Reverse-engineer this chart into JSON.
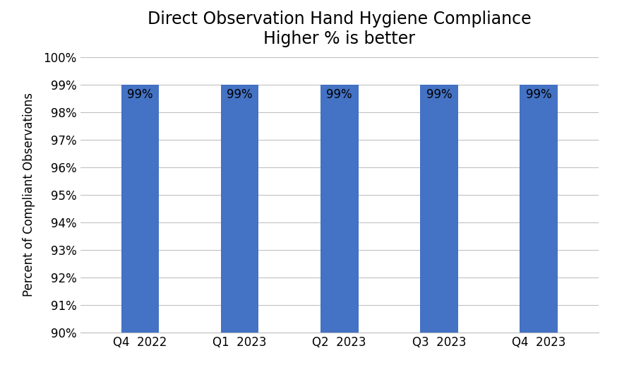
{
  "title_line1": "Direct Observation Hand Hygiene Compliance",
  "title_line2": "Higher % is better",
  "categories": [
    "Q4  2022",
    "Q1  2023",
    "Q2  2023",
    "Q3  2023",
    "Q4  2023"
  ],
  "values": [
    99,
    99,
    99,
    99,
    99
  ],
  "bar_color": "#4472C4",
  "ylabel": "Percent of Compliant Observations",
  "ylim_min": 90,
  "ylim_max": 100,
  "yticks": [
    90,
    91,
    92,
    93,
    94,
    95,
    96,
    97,
    98,
    99,
    100
  ],
  "bar_label_color": "black",
  "bar_label_fontsize": 12,
  "background_color": "#ffffff",
  "grid_color": "#c0c0c0",
  "title_fontsize": 17,
  "ylabel_fontsize": 12,
  "tick_fontsize": 12,
  "bar_width": 0.38
}
